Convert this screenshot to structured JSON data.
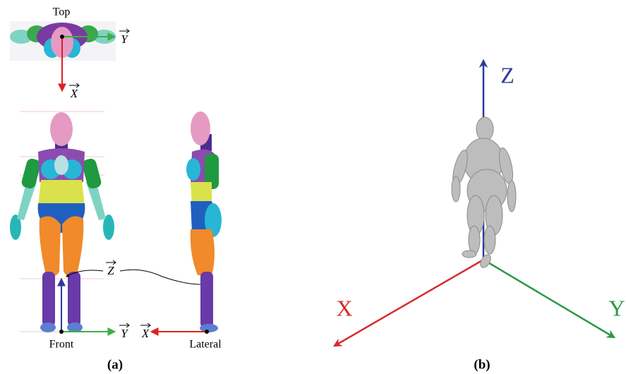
{
  "panel_a": {
    "top_view": {
      "title": "Top",
      "y_axis": "Y",
      "x_axis": "X"
    },
    "front_view": {
      "caption": "Front",
      "y_axis": "Y",
      "z_axis": "Z"
    },
    "lateral_view": {
      "caption": "Lateral",
      "x_axis": "X"
    },
    "label": "(a)"
  },
  "panel_b": {
    "z_axis": "Z",
    "x_axis": "X",
    "y_axis": "Y",
    "label": "(b)"
  }
}
